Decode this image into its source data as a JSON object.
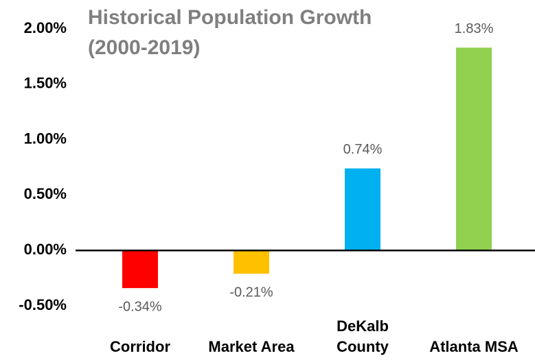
{
  "chart_data": {
    "type": "bar",
    "title": "Historical Population Growth (2000-2019)",
    "categories": [
      "Corridor",
      "Market Area",
      "DeKalb County",
      "Atlanta MSA"
    ],
    "values": [
      -0.34,
      -0.21,
      0.74,
      1.83
    ],
    "value_labels": [
      "-0.34%",
      "-0.21%",
      "0.74%",
      "1.83%"
    ],
    "colors": [
      "#ff0000",
      "#ffc000",
      "#00b0f0",
      "#92d050"
    ],
    "ylim": [
      -0.5,
      2.0
    ],
    "yticks": [
      {
        "value": -0.5,
        "label": "-0.50%"
      },
      {
        "value": 0,
        "label": "0.00%"
      },
      {
        "value": 0.5,
        "label": "0.50%"
      },
      {
        "value": 1.0,
        "label": "1.00%"
      },
      {
        "value": 1.5,
        "label": "1.50%"
      },
      {
        "value": 2.0,
        "label": "2.00%"
      }
    ],
    "grid": false
  }
}
